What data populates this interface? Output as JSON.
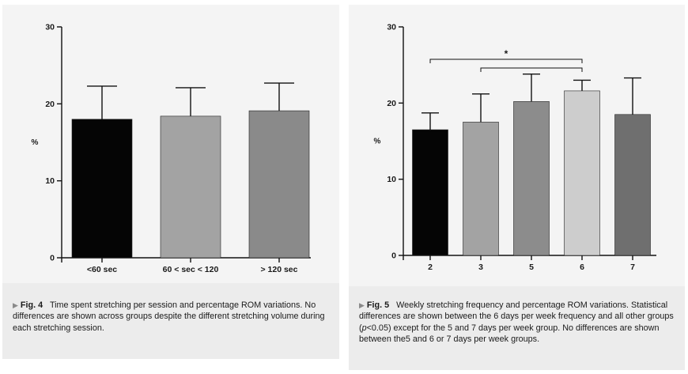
{
  "chart_data": [
    {
      "type": "bar",
      "categories": [
        "<60 sec",
        "60 < sec < 120",
        "> 120 sec"
      ],
      "values": [
        18.0,
        18.4,
        19.1
      ],
      "errors": [
        4.3,
        3.7,
        3.6
      ],
      "bar_colors": [
        "#050505",
        "#a3a3a3",
        "#8a8a8a"
      ],
      "ylabel": "%",
      "ylim": [
        0,
        30
      ],
      "yticks": [
        0,
        10,
        20,
        30
      ],
      "grid": false
    },
    {
      "type": "bar",
      "categories": [
        "2",
        "3",
        "5",
        "6",
        "7"
      ],
      "values": [
        16.5,
        17.5,
        20.2,
        21.6,
        18.5
      ],
      "errors": [
        2.2,
        3.7,
        3.6,
        1.4,
        4.8
      ],
      "bar_colors": [
        "#050505",
        "#a3a3a3",
        "#8c8c8c",
        "#cdcdcd",
        "#6f6f6f"
      ],
      "ylabel": "%",
      "ylim": [
        0,
        30
      ],
      "yticks": [
        0,
        10,
        20,
        30
      ],
      "grid": false,
      "significance": [
        {
          "from": "2",
          "to": "6",
          "label": "*"
        },
        {
          "from": "3",
          "to": "6",
          "label": ""
        }
      ]
    }
  ],
  "captions": {
    "left": {
      "arrow": "▶",
      "label": "Fig. 4",
      "text": "Time spent stretching per session and percentage ROM variations. No differences are shown across groups despite the different stretching volume during each stretching session."
    },
    "right": {
      "arrow": "▶",
      "label": "Fig. 5",
      "text_before_p": "Weekly stretching frequency and percentage ROM variations. Statistical differences are shown between the 6 days per week frequency and all other groups (",
      "p_symbol": "p",
      "text_after_p": "<0.05) except for the 5 and 7 days per week group. No differences are shown between the5 and 6 or 7 days per week groups."
    }
  }
}
